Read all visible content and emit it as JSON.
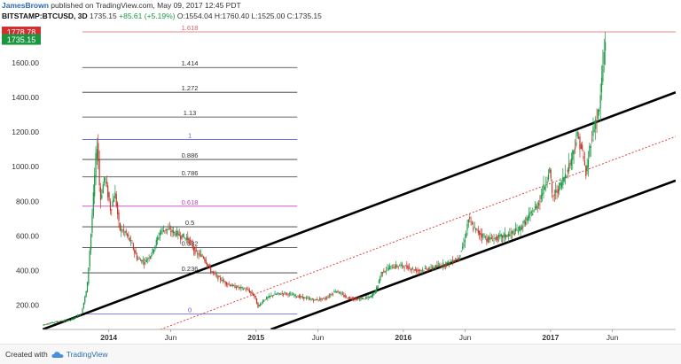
{
  "header": {
    "author": "JamesBrown",
    "published": "published on TradingView.com, May 09, 2017 12:45 PDT",
    "symbol": "BITSTAMP:BTCUSD, 3D",
    "last": "1735.15",
    "change": "+85.61 (+5.19%)",
    "ohlc": "O:1554.04 H:1760.40 L:1525.00 C:1735.15"
  },
  "footer": {
    "created": "Created with",
    "brand": "TradingView"
  },
  "colors": {
    "bull": "#1a9641",
    "bear": "#c0392b",
    "fib_line": "#333333",
    "fib_0_1": "#5b5bdb",
    "fib_618": "#c040c0",
    "fib_1618": "#e06060",
    "channel": "#000000",
    "channel_mid": "#e03030",
    "price_badge": "#1a9641",
    "high_badge": "#d32f2f"
  },
  "chart_data": {
    "type": "candlestick",
    "title": "BITSTAMP:BTCUSD, 3D",
    "y_ticks": [
      "1600.00",
      "1400.00",
      "1200.00",
      "1000.00",
      "800.00",
      "600.00",
      "400.00",
      "200.00"
    ],
    "x_ticks": [
      "2014",
      "Jun",
      "2015",
      "Jun",
      "2016",
      "Jun",
      "2017",
      "Jun"
    ],
    "ylim": [
      60,
      1830
    ],
    "y_label_values": [
      1600,
      1400,
      1200,
      1000,
      800,
      600,
      400,
      200
    ],
    "x_tick_times": [
      2014.0,
      2014.42,
      2015.0,
      2015.42,
      2016.0,
      2016.42,
      2017.0,
      2017.42
    ],
    "xlim": [
      2013.55,
      2017.85
    ],
    "price_labels": {
      "current": "1735.15",
      "high": "1778.78"
    },
    "price_values": {
      "current": 1735.15,
      "high": 1778.78
    },
    "fib_levels": [
      {
        "label": "1.618",
        "price": 1778.78,
        "kind": "ext"
      },
      {
        "label": "1.414",
        "price": 1573,
        "kind": "normal"
      },
      {
        "label": "1.272",
        "price": 1430,
        "kind": "normal"
      },
      {
        "label": "1.13",
        "price": 1287,
        "kind": "normal"
      },
      {
        "label": "1",
        "price": 1157,
        "kind": "base"
      },
      {
        "label": "0.886",
        "price": 1042,
        "kind": "normal"
      },
      {
        "label": "0.786",
        "price": 941,
        "kind": "normal"
      },
      {
        "label": "0.618",
        "price": 772,
        "kind": "golden"
      },
      {
        "label": "0.5",
        "price": 653,
        "kind": "normal"
      },
      {
        "label": "0.382",
        "price": 534,
        "kind": "normal"
      },
      {
        "label": "0.236",
        "price": 387,
        "kind": "normal"
      },
      {
        "label": "0",
        "price": 150,
        "kind": "base"
      }
    ],
    "fib_range": {
      "x_start": 2013.82,
      "x_end": 2015.28
    },
    "channel": {
      "upper": [
        [
          2013.55,
          60
        ],
        [
          2017.85,
          1430
        ]
      ],
      "lower": [
        [
          2015.1,
          60
        ],
        [
          2017.85,
          920
        ]
      ],
      "mid": [
        [
          2014.35,
          60
        ],
        [
          2017.85,
          1175
        ]
      ]
    },
    "price_path": [
      [
        2013.55,
        85
      ],
      [
        2013.65,
        105
      ],
      [
        2013.75,
        115
      ],
      [
        2013.82,
        150
      ],
      [
        2013.86,
        300
      ],
      [
        2013.89,
        650
      ],
      [
        2013.92,
        1050
      ],
      [
        2013.93,
        1150
      ],
      [
        2013.95,
        800
      ],
      [
        2013.98,
        950
      ],
      [
        2014.02,
        750
      ],
      [
        2014.05,
        850
      ],
      [
        2014.08,
        640
      ],
      [
        2014.12,
        620
      ],
      [
        2014.16,
        560
      ],
      [
        2014.2,
        470
      ],
      [
        2014.25,
        450
      ],
      [
        2014.3,
        500
      ],
      [
        2014.36,
        630
      ],
      [
        2014.4,
        640
      ],
      [
        2014.45,
        620
      ],
      [
        2014.5,
        600
      ],
      [
        2014.55,
        580
      ],
      [
        2014.6,
        500
      ],
      [
        2014.65,
        480
      ],
      [
        2014.7,
        400
      ],
      [
        2014.75,
        360
      ],
      [
        2014.8,
        330
      ],
      [
        2014.85,
        310
      ],
      [
        2014.9,
        300
      ],
      [
        2014.95,
        290
      ],
      [
        2015.0,
        250
      ],
      [
        2015.02,
        190
      ],
      [
        2015.06,
        230
      ],
      [
        2015.12,
        260
      ],
      [
        2015.2,
        270
      ],
      [
        2015.3,
        250
      ],
      [
        2015.4,
        230
      ],
      [
        2015.48,
        240
      ],
      [
        2015.55,
        285
      ],
      [
        2015.62,
        245
      ],
      [
        2015.7,
        235
      ],
      [
        2015.78,
        245
      ],
      [
        2015.82,
        280
      ],
      [
        2015.86,
        390
      ],
      [
        2015.92,
        420
      ],
      [
        2016.0,
        430
      ],
      [
        2016.1,
        400
      ],
      [
        2016.2,
        415
      ],
      [
        2016.3,
        440
      ],
      [
        2016.38,
        470
      ],
      [
        2016.42,
        560
      ],
      [
        2016.45,
        700
      ],
      [
        2016.48,
        650
      ],
      [
        2016.52,
        620
      ],
      [
        2016.58,
        580
      ],
      [
        2016.65,
        590
      ],
      [
        2016.72,
        605
      ],
      [
        2016.8,
        640
      ],
      [
        2016.86,
        710
      ],
      [
        2016.92,
        780
      ],
      [
        2016.98,
        920
      ],
      [
        2017.0,
        1000
      ],
      [
        2017.02,
        820
      ],
      [
        2017.08,
        900
      ],
      [
        2017.14,
        1020
      ],
      [
        2017.19,
        1180
      ],
      [
        2017.22,
        1100
      ],
      [
        2017.25,
        950
      ],
      [
        2017.28,
        1150
      ],
      [
        2017.31,
        1250
      ],
      [
        2017.34,
        1330
      ],
      [
        2017.36,
        1550
      ],
      [
        2017.38,
        1735
      ]
    ]
  }
}
